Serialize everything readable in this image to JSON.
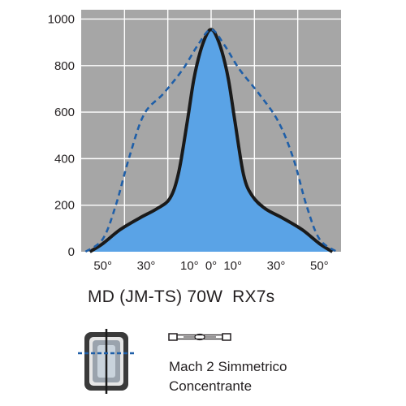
{
  "chart_data": {
    "type": "line",
    "title": "",
    "xlabel": "",
    "ylabel": "",
    "xlim": [
      -60,
      60
    ],
    "ylim": [
      0,
      1040
    ],
    "x_tick_values": [
      -50,
      -30,
      -10,
      0,
      10,
      30,
      50
    ],
    "x_tick_labels": [
      "50°",
      "30°",
      "10°",
      "0°",
      "10°",
      "30°",
      "50°"
    ],
    "y_ticks": [
      0,
      200,
      400,
      600,
      800,
      1000
    ],
    "grid": true,
    "legend": "none",
    "series": [
      {
        "style": "solid-filled",
        "color": "#1a1a1a",
        "fill": "#5aa3e6",
        "points": [
          [
            -56,
            0
          ],
          [
            -50,
            35
          ],
          [
            -42,
            95
          ],
          [
            -33,
            145
          ],
          [
            -25,
            185
          ],
          [
            -19,
            230
          ],
          [
            -15,
            340
          ],
          [
            -11,
            560
          ],
          [
            -8,
            740
          ],
          [
            -5,
            860
          ],
          [
            -2,
            935
          ],
          [
            0,
            955
          ],
          [
            2,
            935
          ],
          [
            5,
            860
          ],
          [
            8,
            740
          ],
          [
            11,
            560
          ],
          [
            15,
            330
          ],
          [
            19,
            240
          ],
          [
            25,
            185
          ],
          [
            33,
            145
          ],
          [
            42,
            95
          ],
          [
            50,
            35
          ],
          [
            56,
            0
          ]
        ]
      },
      {
        "style": "dashed",
        "color": "#1f5fa8",
        "points": [
          [
            -58,
            0
          ],
          [
            -50,
            55
          ],
          [
            -44,
            200
          ],
          [
            -38,
            400
          ],
          [
            -31,
            590
          ],
          [
            -22,
            680
          ],
          [
            -13,
            785
          ],
          [
            -6,
            890
          ],
          [
            0,
            955
          ],
          [
            6,
            890
          ],
          [
            13,
            785
          ],
          [
            22,
            680
          ],
          [
            31,
            560
          ],
          [
            38,
            400
          ],
          [
            44,
            200
          ],
          [
            50,
            55
          ],
          [
            58,
            0
          ]
        ]
      }
    ]
  },
  "caption": "MD (JM-TS) 70W  RX7s",
  "optic": {
    "line1": "Mach 2 Simmetrico",
    "line2": "Concentrante"
  },
  "icons": {
    "fixture": "floodlight-fixture-icon",
    "lamp": "double-ended-lamp-icon"
  }
}
